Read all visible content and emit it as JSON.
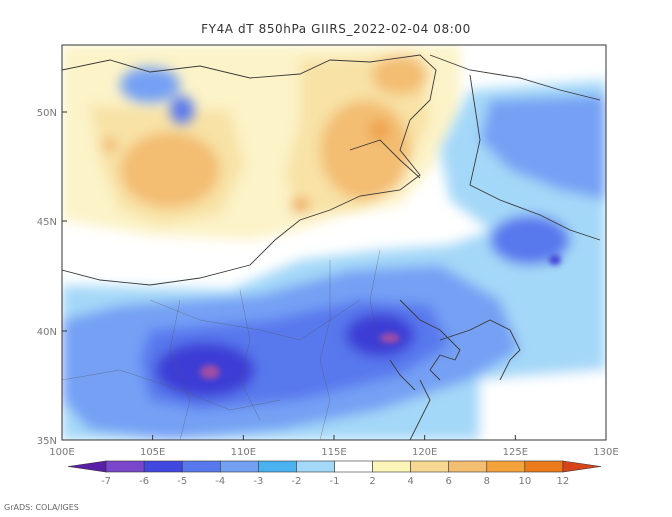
{
  "title": "FY4A dT 850hPa GIIRS_2022-02-04 08:00",
  "lat_ticks": [
    "50N",
    "45N",
    "40N",
    "35N"
  ],
  "lon_ticks": [
    "100E",
    "105E",
    "110E",
    "115E",
    "120E",
    "125E",
    "130E"
  ],
  "colorbar": {
    "labels": [
      "-7",
      "-6",
      "-5",
      "-4",
      "-3",
      "-2",
      "-1",
      "2",
      "4",
      "6",
      "8",
      "10",
      "12"
    ],
    "colors": [
      "#5a1fa8",
      "#7a46cc",
      "#4048e0",
      "#5878ee",
      "#74a0f4",
      "#4ab2f0",
      "#a4d8f8",
      "#ffffff",
      "#fbf5b8",
      "#f6d892",
      "#f3bd72",
      "#f3a23c",
      "#eb7a1a",
      "#d8441a"
    ]
  },
  "credit": "GrADS: COLA/IGES",
  "colors": {
    "white": "#ffffff",
    "pale_yellow": "#fcf3c8",
    "yellow": "#f8e2a6",
    "orange": "#f3bd72",
    "dark_orange": "#ee9f46",
    "light_blue": "#a4d8f8",
    "mid_blue": "#74a0f4",
    "blue": "#5878ee",
    "deep_blue": "#3c3ed6",
    "purple": "#a04da6"
  }
}
